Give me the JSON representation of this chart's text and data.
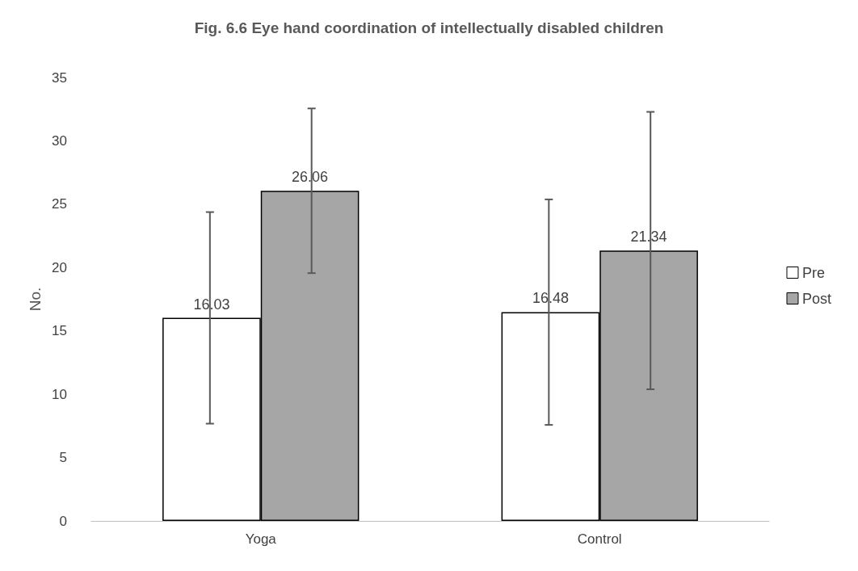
{
  "chart_data": {
    "type": "bar",
    "title": "Fig. 6.6 Eye hand coordination of intellectually disabled children",
    "ylabel": "No.",
    "categories": [
      "Yoga",
      "Control"
    ],
    "series": [
      {
        "name": "Pre",
        "color": "#ffffff",
        "values": [
          16.03,
          16.48
        ],
        "errors": [
          8.35,
          8.9
        ]
      },
      {
        "name": "Post",
        "color": "#a6a6a6",
        "values": [
          26.06,
          21.34
        ],
        "errors": [
          6.5,
          10.95
        ]
      }
    ],
    "ylim": [
      0,
      35
    ],
    "yticks": [
      0,
      5,
      10,
      15,
      20,
      25,
      30,
      35
    ],
    "grid": false,
    "legend": "right",
    "data_labels": true
  }
}
